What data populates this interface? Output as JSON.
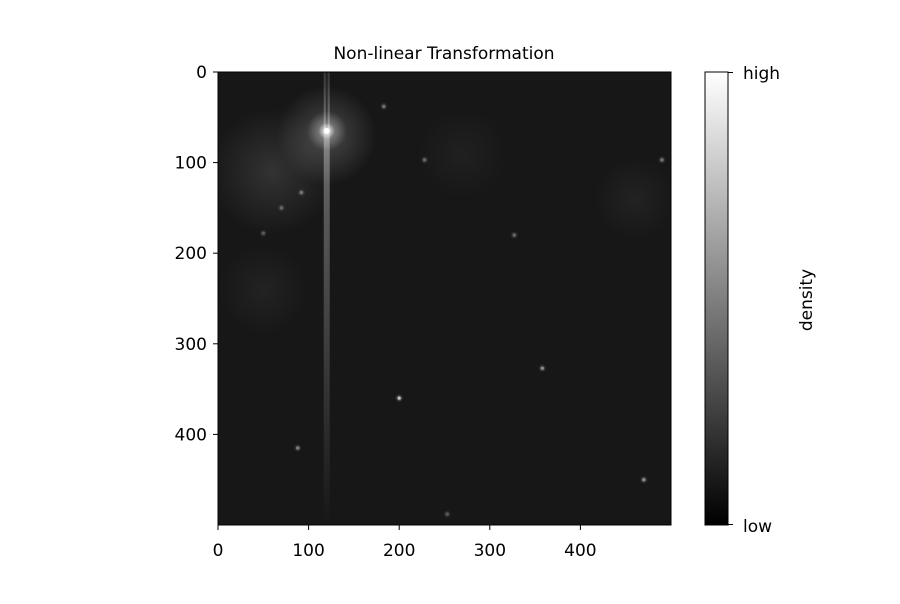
{
  "chart_data": {
    "type": "heatmap",
    "title": "Non-linear Transformation",
    "xlabel": "",
    "ylabel": "",
    "xlim": [
      0,
      500
    ],
    "ylim": [
      500,
      0
    ],
    "y_axis_inverted": true,
    "x_ticks": [
      0,
      100,
      200,
      300,
      400
    ],
    "y_ticks": [
      0,
      100,
      200,
      300,
      400
    ],
    "colormap": "gray",
    "background_level": 0.09,
    "colorbar": {
      "label": "density",
      "tick_labels": [
        "low",
        "high"
      ],
      "position": "right"
    },
    "grid": false,
    "features": [
      {
        "kind": "bright_star",
        "x": 120,
        "y": 65,
        "intensity": 1.0,
        "radius": 10
      },
      {
        "kind": "diffuse_glow",
        "x": 120,
        "y": 70,
        "intensity": 0.22,
        "radius": 55
      },
      {
        "kind": "diffuse_glow",
        "x": 60,
        "y": 110,
        "intensity": 0.12,
        "radius": 70
      },
      {
        "kind": "diffuse_glow",
        "x": 50,
        "y": 240,
        "intensity": 0.05,
        "radius": 50
      },
      {
        "kind": "diffuse_glow",
        "x": 460,
        "y": 140,
        "intensity": 0.05,
        "radius": 45
      },
      {
        "kind": "diffuse_glow",
        "x": 270,
        "y": 90,
        "intensity": 0.04,
        "radius": 50
      },
      {
        "kind": "point",
        "x": 200,
        "y": 360,
        "intensity": 0.75
      },
      {
        "kind": "point",
        "x": 358,
        "y": 327,
        "intensity": 0.55
      },
      {
        "kind": "point",
        "x": 470,
        "y": 450,
        "intensity": 0.55
      },
      {
        "kind": "point",
        "x": 88,
        "y": 415,
        "intensity": 0.5
      },
      {
        "kind": "point",
        "x": 183,
        "y": 38,
        "intensity": 0.45
      },
      {
        "kind": "point",
        "x": 228,
        "y": 97,
        "intensity": 0.4
      },
      {
        "kind": "point",
        "x": 327,
        "y": 180,
        "intensity": 0.4
      },
      {
        "kind": "point",
        "x": 490,
        "y": 97,
        "intensity": 0.45
      },
      {
        "kind": "point",
        "x": 92,
        "y": 133,
        "intensity": 0.45
      },
      {
        "kind": "point",
        "x": 70,
        "y": 150,
        "intensity": 0.4
      },
      {
        "kind": "point",
        "x": 50,
        "y": 178,
        "intensity": 0.35
      },
      {
        "kind": "point",
        "x": 253,
        "y": 488,
        "intensity": 0.35
      }
    ]
  }
}
